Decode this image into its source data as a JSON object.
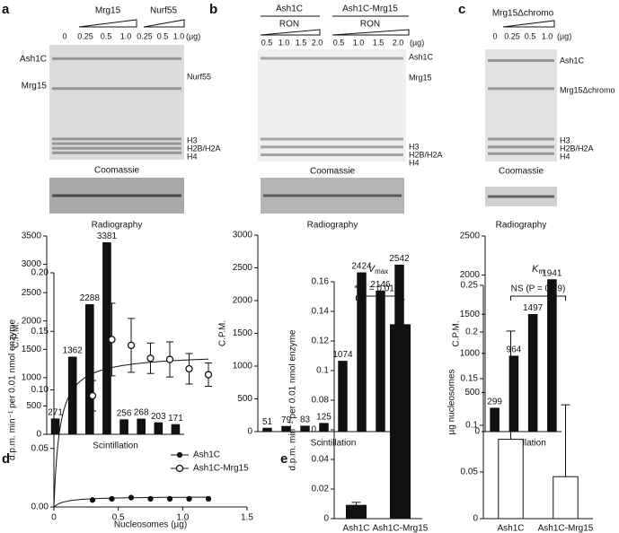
{
  "panels": [
    {
      "letter": "a",
      "groups": [
        "Mrg15",
        "Nurf55"
      ],
      "unit": "(µg)",
      "lanes": [
        "0",
        "0.25",
        "0.5",
        "1.0",
        "0.25",
        "0.5",
        "1.0"
      ],
      "left_labels": [
        "Ash1C",
        "Mrg15"
      ],
      "right_labels": [
        "Nurf55",
        "H3",
        "H2B/H2A",
        "H4"
      ],
      "captions": [
        "Coomassie",
        "Radiography"
      ]
    },
    {
      "letter": "b",
      "groups": [
        "Ash1C",
        "Ash1C-Mrg15"
      ],
      "subgroups": [
        "RON",
        "RON"
      ],
      "unit": "(µg)",
      "lanes": [
        "0.5",
        "1.0",
        "1.5",
        "2.0",
        "0.5",
        "1.0",
        "1.5",
        "2.0"
      ],
      "right_labels": [
        "Ash1C",
        "Mrg15",
        "H3",
        "H2B/H2A",
        "H4"
      ],
      "captions": [
        "Coomassie",
        "Radiography"
      ]
    },
    {
      "letter": "c",
      "groups": [
        "Mrg15Δchromo"
      ],
      "unit": "(µg)",
      "lanes": [
        "0",
        "0.25",
        "0.5",
        "1.0"
      ],
      "right_labels": [
        "Ash1C",
        "Mrg15Δchromo",
        "H3",
        "H2B/H2A",
        "H4"
      ],
      "captions": [
        "Coomassie",
        "Radiography"
      ]
    },
    {
      "letter": "d"
    },
    {
      "letter": "e"
    }
  ],
  "chart_data": [
    {
      "type": "bar",
      "ylabel": "C.P.M.",
      "xlabel": "Scintillation",
      "color": "#111111",
      "data_labels": true,
      "categories": [
        null,
        null,
        null,
        null,
        null,
        null,
        null,
        null
      ],
      "values": [
        271,
        1362,
        2288,
        3381,
        256,
        268,
        203,
        171
      ],
      "ylim": [
        0,
        3500
      ],
      "yticks": [
        0,
        500,
        1000,
        1500,
        2000,
        2500,
        3000,
        3500
      ]
    },
    {
      "type": "bar",
      "ylabel": "C.P.M.",
      "xlabel": "Scintillation",
      "color": "#111111",
      "data_labels": true,
      "categories": [
        null,
        null,
        null,
        null,
        null,
        null,
        null,
        null
      ],
      "values": [
        51,
        79,
        83,
        125,
        1074,
        2424,
        2146,
        2542
      ],
      "ylim": [
        0,
        3000
      ],
      "yticks": [
        0,
        500,
        1000,
        1500,
        2000,
        2500,
        3000
      ]
    },
    {
      "type": "bar",
      "ylabel": "C.P.M.",
      "xlabel": "Scintillation",
      "color": "#111111",
      "data_labels": true,
      "categories": [
        null,
        null,
        null,
        null
      ],
      "values": [
        299,
        964,
        1497,
        1941
      ],
      "ylim": [
        0,
        2500
      ],
      "yticks": [
        0,
        500,
        1000,
        1500,
        2000,
        2500
      ]
    },
    {
      "type": "scatter",
      "xlabel": "Nucleosomes (µg)",
      "ylabel": "d.p.m. min⁻¹ per 0.01 nmol enzyme",
      "fit": true,
      "xlim": [
        0,
        1.5
      ],
      "xticks": [
        0,
        0.5,
        {
          "value": 1,
          "label": "1.0"
        },
        1.5
      ],
      "ylim": [
        0,
        0.2
      ],
      "yticks": [
        {
          "value": 0,
          "label": "0.00"
        },
        {
          "value": 0.05,
          "label": "0.05"
        },
        {
          "value": 0.1,
          "label": "0.10"
        },
        {
          "value": 0.15,
          "label": "0.15"
        },
        {
          "value": 0.2,
          "label": "0.20"
        }
      ],
      "series": [
        {
          "name": "Ash1C",
          "color": "#111111",
          "marker": "filled",
          "x": [
            0.3,
            0.45,
            0.6,
            0.75,
            0.9,
            1.05,
            1.2
          ],
          "values": [
            0.006,
            0.007,
            0.008,
            0.007,
            0.007,
            0.007,
            0.007
          ]
        },
        {
          "name": "Ash1C-Mrg15",
          "color": "#111111",
          "marker": "open",
          "x": [
            0.3,
            0.45,
            0.6,
            0.75,
            0.9,
            1.05,
            1.2
          ],
          "values": [
            0.095,
            0.143,
            0.138,
            0.127,
            0.126,
            0.118,
            0.113
          ],
          "errors": [
            0.013,
            0.031,
            0.023,
            0.013,
            0.015,
            0.013,
            0.01
          ]
        }
      ]
    },
    {
      "type": "bar",
      "title": {
        "main": "V",
        "sub": "max"
      },
      "ylabel": "d.p.m. min⁻¹ per 0.01 nmol enzyme",
      "color": "#111111",
      "annotation": "*(P = 0.018)",
      "categories": [
        "Ash1C",
        "Ash1C-Mrg15"
      ],
      "values": [
        0.009,
        0.131
      ],
      "errors": [
        0.002,
        0.017
      ],
      "ylim": [
        0,
        0.16
      ],
      "yticks": [
        0,
        0.02,
        0.04,
        0.06,
        0.08,
        0.1,
        0.12,
        0.14,
        0.16
      ]
    },
    {
      "type": "bar",
      "title": {
        "main": "K",
        "sub": "m"
      },
      "ylabel": "µg nucleosomes",
      "color": "#ffffff",
      "annotation": "NS (P = 0.79)",
      "categories": [
        "Ash1C",
        "Ash1C-Mrg15"
      ],
      "values": [
        0.085,
        0.045
      ],
      "errors": [
        0.116,
        0.077
      ],
      "ylim": [
        0,
        0.25
      ],
      "yticks": [
        0,
        0.05,
        0.1,
        0.15,
        0.2,
        0.25
      ]
    }
  ]
}
